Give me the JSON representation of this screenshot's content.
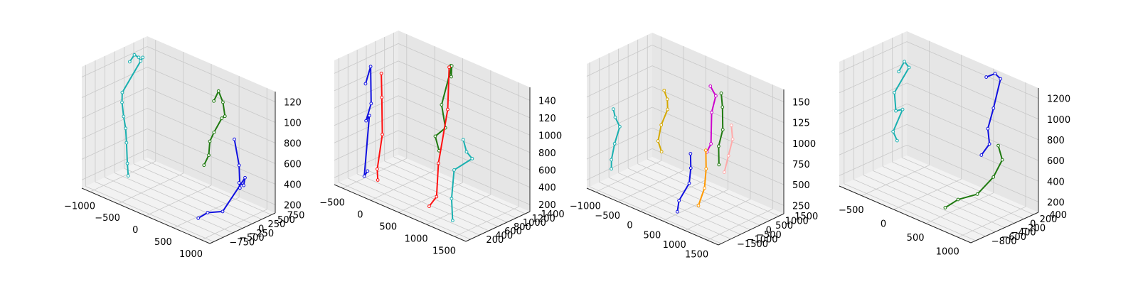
{
  "chart_data": [
    {
      "type": "scatter",
      "title": "",
      "axes": {
        "x_ticks": [
          "−1000",
          "−500",
          "0",
          "500",
          "1000"
        ],
        "y_ticks": [
          "−750",
          "−500",
          "−250",
          "0",
          "250",
          "500",
          "750"
        ],
        "z_ticks": [
          "200",
          "400",
          "600",
          "800",
          "100",
          "120"
        ]
      },
      "skeletons": [
        {
          "color": "#1ab0b0",
          "joints": [
            [
              -1050,
              250,
              1180
            ],
            [
              -1000,
              300,
              1250
            ],
            [
              -950,
              340,
              1230
            ],
            [
              -900,
              320,
              1210
            ],
            [
              -850,
              300,
              1260
            ],
            [
              -1080,
              100,
              900
            ],
            [
              -1050,
              50,
              820
            ],
            [
              -1000,
              20,
              700
            ],
            [
              -950,
              0,
              600
            ],
            [
              -900,
              -50,
              480
            ],
            [
              -850,
              -100,
              300
            ],
            [
              -800,
              -150,
              200
            ]
          ]
        },
        {
          "color": "#1f7a10",
          "joints": [
            [
              150,
              700,
              1000
            ],
            [
              200,
              750,
              1100
            ],
            [
              300,
              720,
              1020
            ],
            [
              350,
              700,
              900
            ],
            [
              280,
              720,
              860
            ],
            [
              160,
              690,
              700
            ],
            [
              300,
              380,
              700
            ],
            [
              280,
              380,
              560
            ],
            [
              250,
              300,
              470
            ]
          ]
        },
        {
          "color": "#1010e0",
          "joints": [
            [
              900,
              150,
              900
            ],
            [
              950,
              200,
              650
            ],
            [
              1000,
              150,
              450
            ],
            [
              950,
              200,
              480
            ],
            [
              880,
              420,
              400
            ],
            [
              780,
              600,
              420
            ],
            [
              1000,
              -300,
              300
            ],
            [
              800,
              -400,
              260
            ],
            [
              700,
              -500,
              200
            ]
          ]
        }
      ]
    },
    {
      "type": "scatter",
      "title": "",
      "axes": {
        "x_ticks": [
          "−500",
          "0",
          "500",
          "1000",
          "1500"
        ],
        "y_ticks": [
          "200",
          "400",
          "600",
          "800",
          "1000",
          "1200",
          "1400"
        ],
        "z_ticks": [
          "200",
          "400",
          "600",
          "800",
          "1000",
          "120",
          "140"
        ]
      },
      "skeletons": [
        {
          "color": "#1010e0",
          "joints": [
            [
              -500,
              600,
              1200
            ],
            [
              -450,
              650,
              1400
            ],
            [
              -400,
              600,
              1000
            ],
            [
              -450,
              550,
              800
            ],
            [
              -350,
              500,
              900
            ],
            [
              -400,
              450,
              200
            ],
            [
              -300,
              400,
              300
            ]
          ]
        },
        {
          "color": "#ff1010",
          "joints": [
            [
              -300,
              700,
              1350
            ],
            [
              -250,
              650,
              1100
            ],
            [
              -200,
              600,
              700
            ],
            [
              -250,
              550,
              300
            ],
            [
              -200,
              500,
              200
            ]
          ]
        },
        {
          "color": "#1f7a10",
          "joints": [
            [
              450,
              1300,
              1500
            ],
            [
              500,
              1250,
              1400
            ],
            [
              550,
              1200,
              1550
            ],
            [
              450,
              1100,
              1100
            ],
            [
              600,
              1000,
              900
            ],
            [
              500,
              900,
              800
            ],
            [
              650,
              800,
              700
            ]
          ]
        },
        {
          "color": "#ff1010",
          "joints": [
            [
              430,
              1290,
              1480
            ],
            [
              600,
              1050,
              1100
            ],
            [
              720,
              700,
              600
            ],
            [
              850,
              500,
              300
            ],
            [
              800,
              400,
              200
            ]
          ]
        },
        {
          "color": "#1ab0b0",
          "joints": [
            [
              1000,
              900,
              900
            ],
            [
              1100,
              850,
              800
            ],
            [
              1200,
              850,
              750
            ],
            [
              1000,
              700,
              600
            ],
            [
              1200,
              400,
              400
            ],
            [
              1300,
              300,
              200
            ]
          ]
        }
      ]
    },
    {
      "type": "scatter",
      "title": "",
      "axes": {
        "x_ticks": [
          "−1000",
          "−500",
          "0",
          "500",
          "1000",
          "1500"
        ],
        "y_ticks": [
          "−1500",
          "−1000",
          "−500",
          "0",
          "500",
          "1000",
          "1500"
        ],
        "z_ticks": [
          "250",
          "500",
          "750",
          "1000",
          "125",
          "150"
        ]
      },
      "skeletons": [
        {
          "color": "#1ab0b0",
          "joints": [
            [
              -1100,
              -500,
              1000
            ],
            [
              -1080,
              -450,
              900
            ],
            [
              -1000,
              -400,
              800
            ],
            [
              -1050,
              -550,
              600
            ],
            [
              -1100,
              -600,
              400
            ],
            [
              -1080,
              -650,
              300
            ]
          ]
        },
        {
          "color": "#d4a800",
          "joints": [
            [
              -350,
              400,
              1300
            ],
            [
              -300,
              450,
              1200
            ],
            [
              -250,
              350,
              1100
            ],
            [
              -350,
              250,
              900
            ],
            [
              -400,
              200,
              700
            ],
            [
              -300,
              150,
              600
            ]
          ]
        },
        {
          "color": "#cc00cc",
          "joints": [
            [
              600,
              600,
              1550
            ],
            [
              700,
              650,
              1450
            ],
            [
              650,
              550,
              1250
            ],
            [
              700,
              400,
              900
            ],
            [
              650,
              300,
              800
            ]
          ]
        },
        {
          "color": "#1f7a10",
          "joints": [
            [
              800,
              700,
              1500
            ],
            [
              850,
              650,
              1350
            ],
            [
              900,
              550,
              1100
            ],
            [
              850,
              450,
              900
            ],
            [
              900,
              350,
              700
            ]
          ]
        },
        {
          "color": "#1010e0",
          "joints": [
            [
              500,
              -200,
              800
            ],
            [
              550,
              -300,
              650
            ],
            [
              600,
              -500,
              500
            ],
            [
              500,
              -800,
              300
            ],
            [
              550,
              -1000,
              200
            ]
          ]
        },
        {
          "color": "#ff9900",
          "joints": [
            [
              800,
              -100,
              900
            ],
            [
              850,
              -200,
              700
            ],
            [
              900,
              -400,
              500
            ],
            [
              850,
              -600,
              300
            ]
          ]
        },
        {
          "color": "#ffaaaa",
          "joints": [
            [
              1200,
              300,
              1250
            ],
            [
              1250,
              250,
              1100
            ],
            [
              1200,
              150,
              900
            ],
            [
              1150,
              50,
              700
            ]
          ]
        }
      ]
    },
    {
      "type": "scatter",
      "title": "",
      "axes": {
        "x_ticks": [
          "−500",
          "0",
          "500",
          "1000"
        ],
        "y_ticks": [
          "−800",
          "−600",
          "−400",
          "−200",
          "0",
          "200",
          "400"
        ],
        "z_ticks": [
          "200",
          "400",
          "600",
          "800",
          "1000",
          "1200"
        ]
      },
      "skeletons": [
        {
          "color": "#1ab0b0",
          "joints": [
            [
              -750,
              200,
              1000
            ],
            [
              -700,
              250,
              1100
            ],
            [
              -650,
              280,
              1050
            ],
            [
              -780,
              150,
              800
            ],
            [
              -720,
              100,
              650
            ],
            [
              -600,
              80,
              700
            ],
            [
              -650,
              -50,
              500
            ],
            [
              -550,
              -100,
              450
            ]
          ]
        },
        {
          "color": "#1010e0",
          "joints": [
            [
              500,
              350,
              1250
            ],
            [
              600,
              400,
              1300
            ],
            [
              700,
              380,
              1280
            ],
            [
              650,
              300,
              1000
            ],
            [
              600,
              250,
              800
            ],
            [
              700,
              150,
              700
            ],
            [
              650,
              50,
              600
            ]
          ]
        },
        {
          "color": "#1f7a10",
          "joints": [
            [
              800,
              200,
              700
            ],
            [
              900,
              150,
              600
            ],
            [
              950,
              -100,
              500
            ],
            [
              850,
              -300,
              350
            ],
            [
              700,
              -500,
              300
            ],
            [
              650,
              -700,
              250
            ]
          ]
        }
      ]
    }
  ]
}
